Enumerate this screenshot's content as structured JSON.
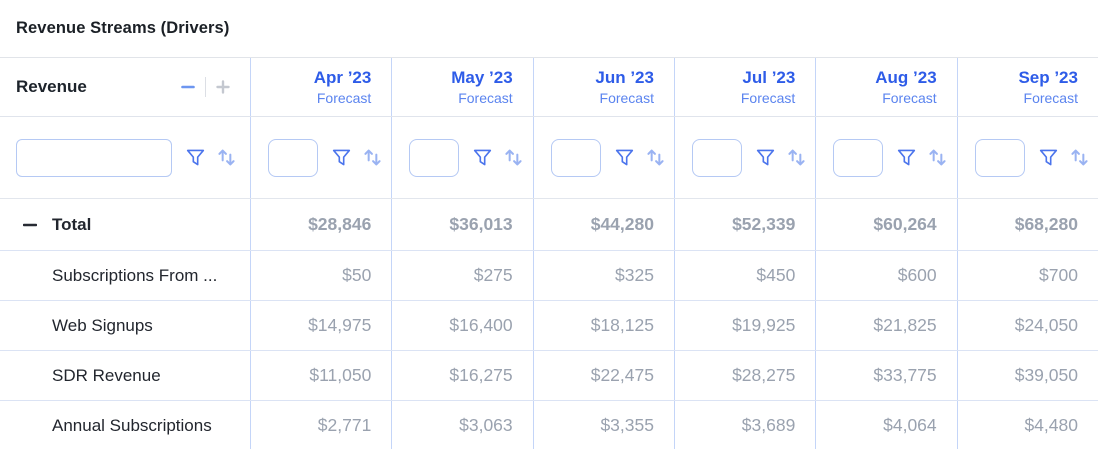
{
  "title": "Revenue Streams (Drivers)",
  "colors": {
    "month_blue": "#2e5ce8",
    "forecast_blue": "#5b84ef",
    "funnel_icon_blue": "#4b74ec",
    "sort_icon_blue": "#9ab3f2",
    "value_gray": "#9aa2af",
    "text_dark": "#1d232b",
    "column_divider_blue": "#c4d5f8"
  },
  "icons": {
    "collapse_minus": "minus-icon",
    "zoom_out": "minus-icon",
    "zoom_in": "plus-icon",
    "filter": "funnel-icon",
    "sort": "sort-up-down-icon"
  },
  "table": {
    "row_header_label": "Revenue",
    "filter_input_value": "",
    "columns": [
      {
        "label": "Apr ’23",
        "sublabel": "Forecast"
      },
      {
        "label": "May ’23",
        "sublabel": "Forecast"
      },
      {
        "label": "Jun ’23",
        "sublabel": "Forecast"
      },
      {
        "label": "Jul ’23",
        "sublabel": "Forecast"
      },
      {
        "label": "Aug ’23",
        "sublabel": "Forecast"
      },
      {
        "label": "Sep ’23",
        "sublabel": "Forecast"
      }
    ],
    "rows": [
      {
        "label": "Total",
        "is_total": true,
        "values": [
          "$28,846",
          "$36,013",
          "$44,280",
          "$52,339",
          "$60,264",
          "$68,280"
        ]
      },
      {
        "label": "Subscriptions From ...",
        "is_total": false,
        "values": [
          "$50",
          "$275",
          "$325",
          "$450",
          "$600",
          "$700"
        ]
      },
      {
        "label": "Web Signups",
        "is_total": false,
        "values": [
          "$14,975",
          "$16,400",
          "$18,125",
          "$19,925",
          "$21,825",
          "$24,050"
        ]
      },
      {
        "label": "SDR Revenue",
        "is_total": false,
        "values": [
          "$11,050",
          "$16,275",
          "$22,475",
          "$28,275",
          "$33,775",
          "$39,050"
        ]
      },
      {
        "label": "Annual Subscriptions",
        "is_total": false,
        "values": [
          "$2,771",
          "$3,063",
          "$3,355",
          "$3,689",
          "$4,064",
          "$4,480"
        ]
      }
    ]
  }
}
